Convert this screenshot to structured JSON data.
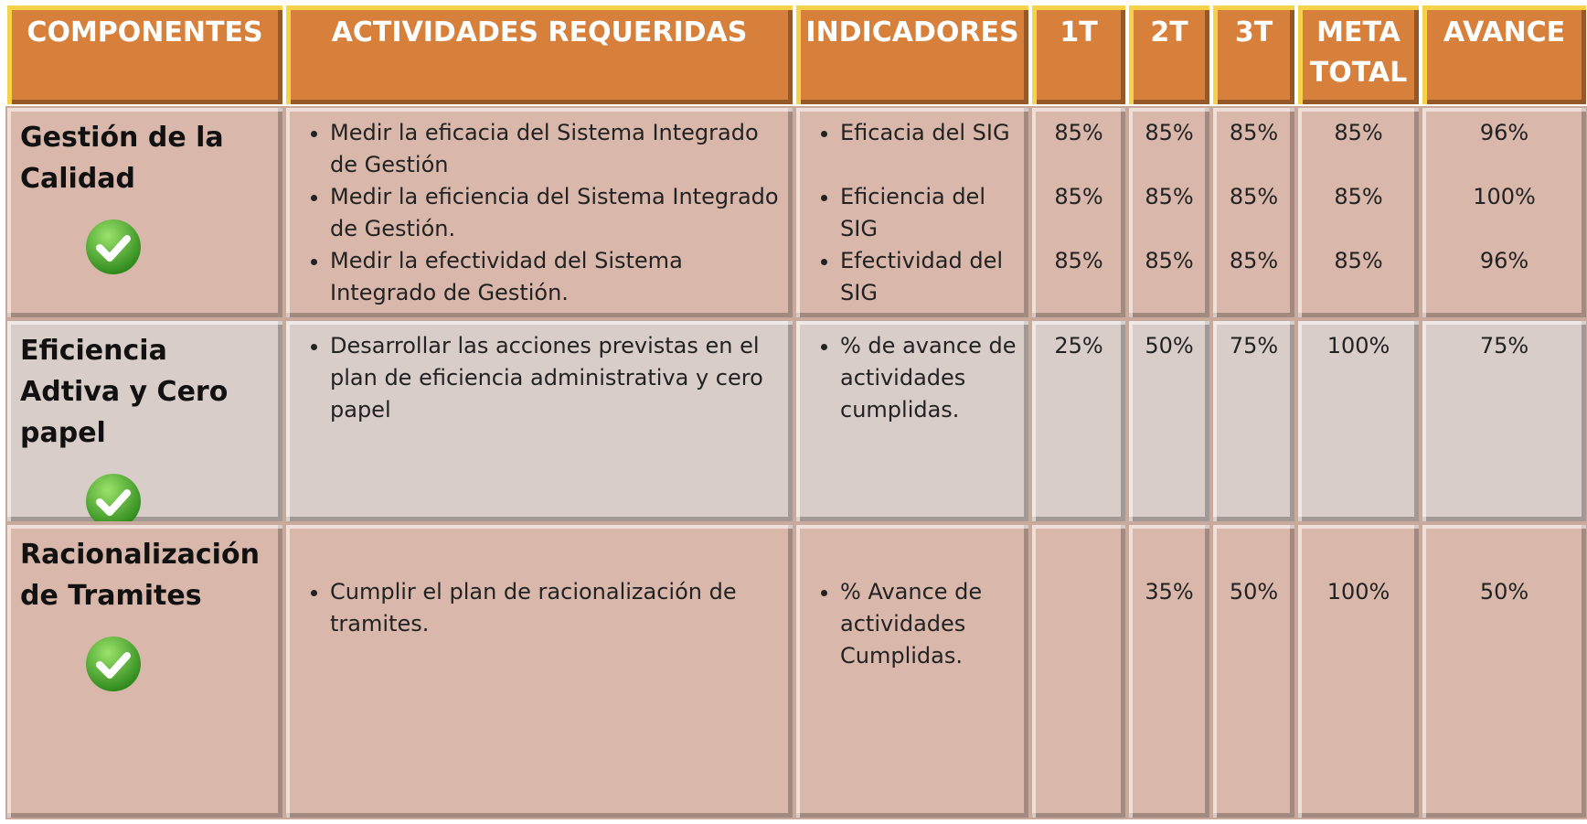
{
  "table": {
    "headers": [
      "COMPONENTES",
      "ACTIVIDADES REQUERIDAS",
      "INDICADORES",
      "1T",
      "2T",
      "3T",
      "META TOTAL",
      "AVANCE"
    ],
    "rows": [
      {
        "component": "Gestión de la Calidad",
        "activities": [
          "Medir la eficacia del Sistema Integrado de Gestión",
          "Medir la eficiencia del Sistema Integrado de Gestión.",
          "Medir la efectividad del Sistema Integrado de Gestión."
        ],
        "indicators": [
          "Eficacia del SIG",
          "Eficiencia del SIG",
          "Efectividad del SIG"
        ],
        "t1": [
          "85%",
          "85%",
          "85%"
        ],
        "t2": [
          "85%",
          "85%",
          "85%"
        ],
        "t3": [
          "85%",
          "85%",
          "85%"
        ],
        "meta": [
          "85%",
          "85%",
          "85%"
        ],
        "avance": [
          "96%",
          "100%",
          "96%"
        ]
      },
      {
        "component": "Eficiencia Adtiva y Cero papel",
        "activities": [
          "Desarrollar las acciones previstas en el plan de eficiencia administrativa y cero papel"
        ],
        "indicators": [
          "% de avance de actividades cumplidas."
        ],
        "t1": [
          "25%"
        ],
        "t2": [
          "50%"
        ],
        "t3": [
          "75%"
        ],
        "meta": [
          "100%"
        ],
        "avance": [
          "75%"
        ]
      },
      {
        "component": "Racionalización de Tramites",
        "activities": [
          "Cumplir el plan de racionalización de tramites."
        ],
        "indicators": [
          "% Avance de actividades Cumplidas."
        ],
        "t1": [],
        "t2": [
          "35%"
        ],
        "t3": [
          "50%"
        ],
        "meta": [
          "100%"
        ],
        "avance": [
          "50%"
        ]
      }
    ]
  }
}
